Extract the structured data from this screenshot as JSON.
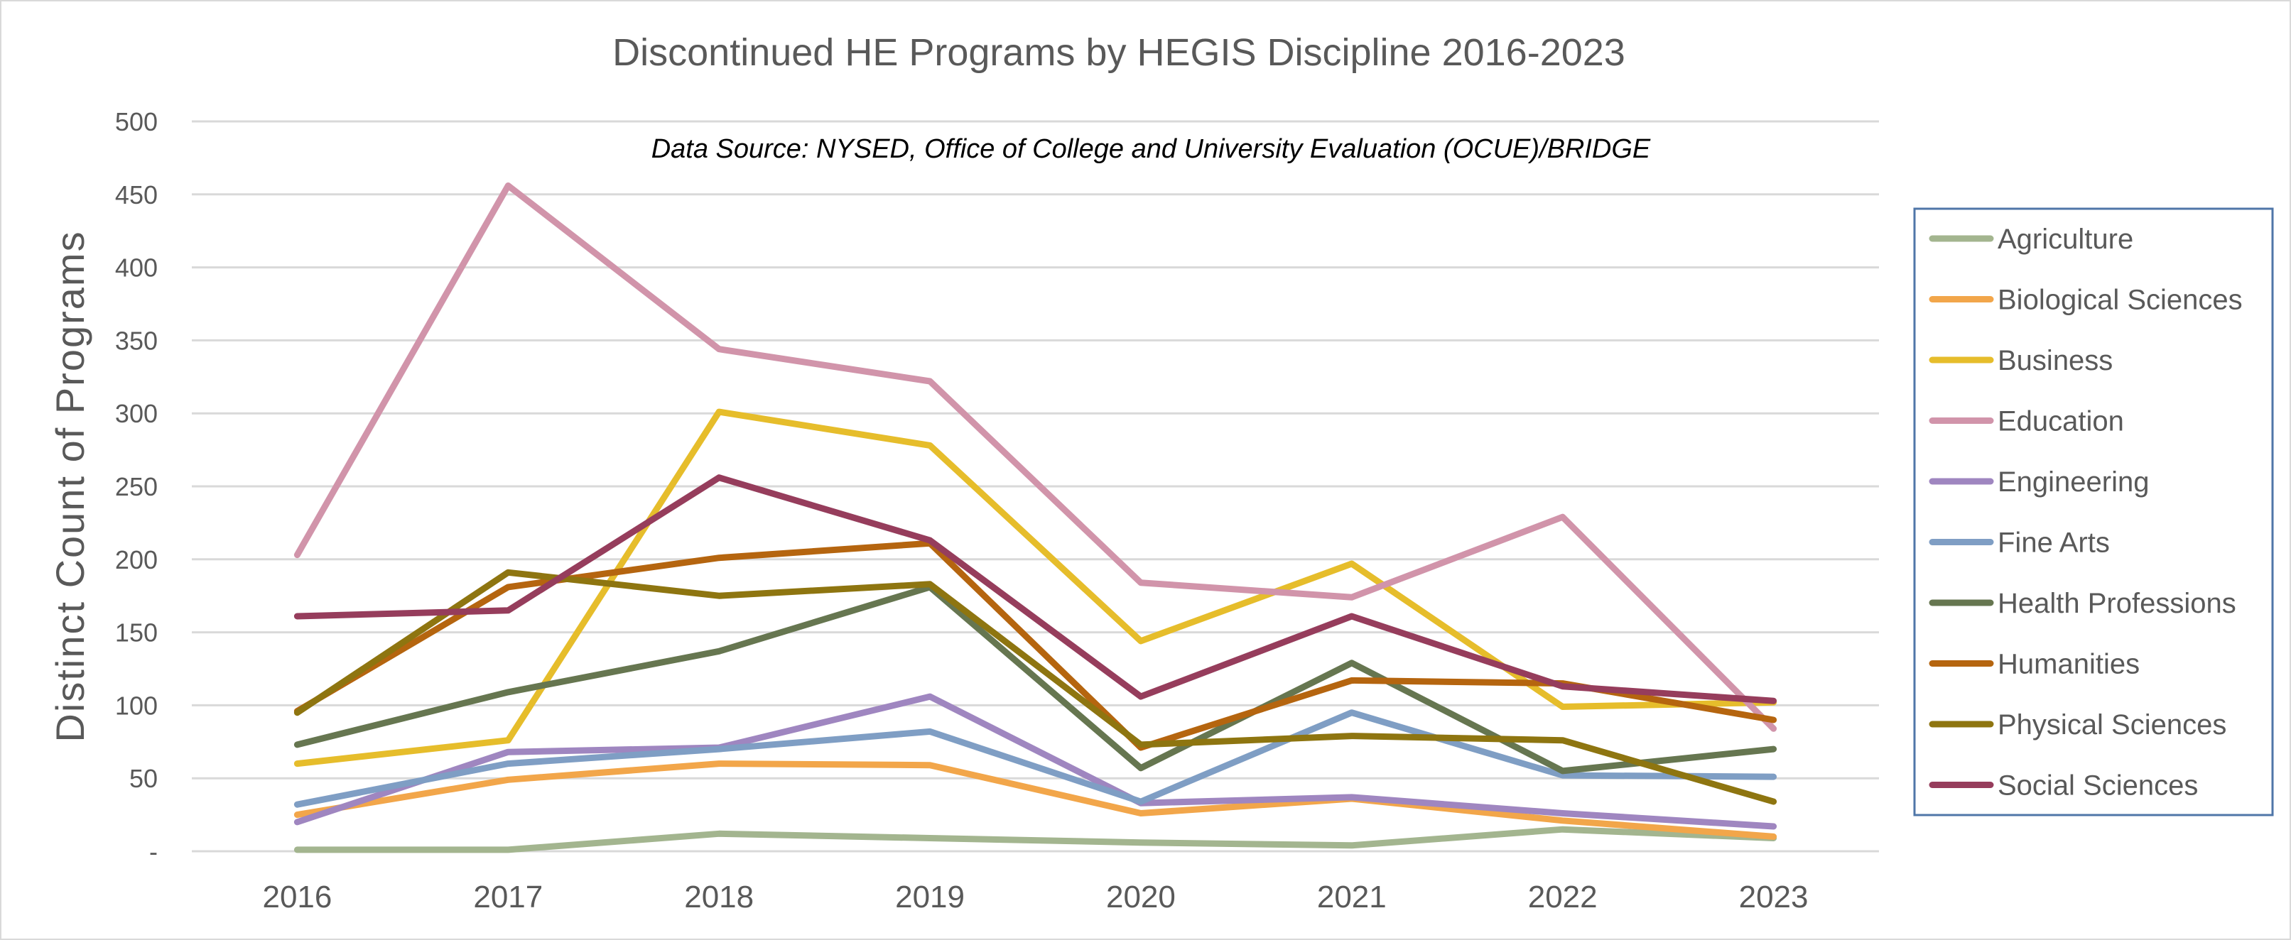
{
  "chart_data": {
    "type": "line",
    "title": "Discontinued HE Programs by HEGIS Discipline 2016-2023",
    "subtitle": "Data Source: NYSED, Office of College and University Evaluation (OCUE)/BRIDGE",
    "xlabel": "",
    "ylabel": "Distinct Count of Programs",
    "ylim": [
      0,
      500
    ],
    "yticks": [
      0,
      50,
      100,
      150,
      200,
      250,
      300,
      350,
      400,
      450,
      500
    ],
    "ytick_labels": [
      "-",
      "50",
      "100",
      "150",
      "200",
      "250",
      "300",
      "350",
      "400",
      "450",
      "500"
    ],
    "grid": true,
    "legend_position": "right",
    "categories": [
      "2016",
      "2017",
      "2018",
      "2019",
      "2020",
      "2021",
      "2022",
      "2023"
    ],
    "series": [
      {
        "name": "Agriculture",
        "color": "#a3b58f",
        "values": [
          1,
          1,
          12,
          9,
          6,
          4,
          15,
          9
        ]
      },
      {
        "name": "Biological Sciences",
        "color": "#f2a64a",
        "values": [
          25,
          49,
          60,
          59,
          26,
          36,
          21,
          10
        ]
      },
      {
        "name": "Business",
        "color": "#e6bd2b",
        "values": [
          60,
          76,
          301,
          278,
          144,
          197,
          99,
          102
        ]
      },
      {
        "name": "Education",
        "color": "#d194aa",
        "values": [
          203,
          456,
          344,
          322,
          184,
          174,
          229,
          84
        ]
      },
      {
        "name": "Engineering",
        "color": "#9f86c0",
        "values": [
          20,
          68,
          71,
          106,
          33,
          37,
          26,
          17
        ]
      },
      {
        "name": "Fine Arts",
        "color": "#7f9ec4",
        "values": [
          32,
          60,
          70,
          82,
          34,
          95,
          52,
          51
        ]
      },
      {
        "name": "Health Professions",
        "color": "#667650",
        "values": [
          73,
          109,
          137,
          181,
          57,
          129,
          55,
          70
        ]
      },
      {
        "name": "Humanities",
        "color": "#b5650f",
        "values": [
          96,
          181,
          201,
          211,
          71,
          117,
          115,
          90
        ]
      },
      {
        "name": "Physical Sciences",
        "color": "#8e7510",
        "values": [
          95,
          191,
          175,
          183,
          73,
          79,
          76,
          34
        ]
      },
      {
        "name": "Social Sciences",
        "color": "#963d5c",
        "values": [
          161,
          165,
          256,
          213,
          106,
          161,
          113,
          103
        ]
      }
    ]
  }
}
